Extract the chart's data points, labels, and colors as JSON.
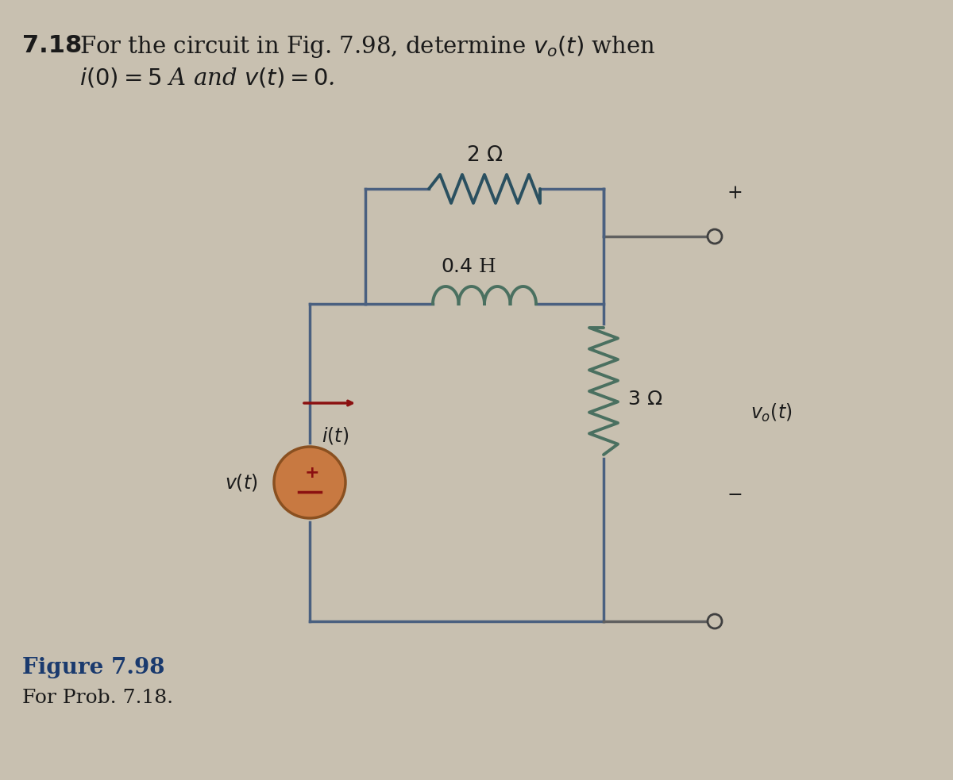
{
  "title_bold": "7.18",
  "title_rest": "  For the circuit in Fig. 7.98, determine ν₀(t) when",
  "title_line2": "      i(0) = 5 A and ν(t) = 0.",
  "fig_label": "Figure 7.98",
  "fig_sublabel": "For Prob. 7.18.",
  "resistor1_label": "2 Ω",
  "inductor_label": "0.4 H",
  "resistor2_label": "3 Ω",
  "bg_color": "#c8c0b0",
  "wire_color": "#4a6080",
  "resistor_color": "#2a5060",
  "inductor_color": "#4a7060",
  "source_fill": "#c87941",
  "source_edge": "#8a5020",
  "arrow_color": "#8b1010",
  "text_color": "#1a1a1a",
  "plus_color": "#8b1010",
  "minus_color": "#8b1010",
  "output_wire_color": "#606060",
  "terminal_color": "#404040"
}
